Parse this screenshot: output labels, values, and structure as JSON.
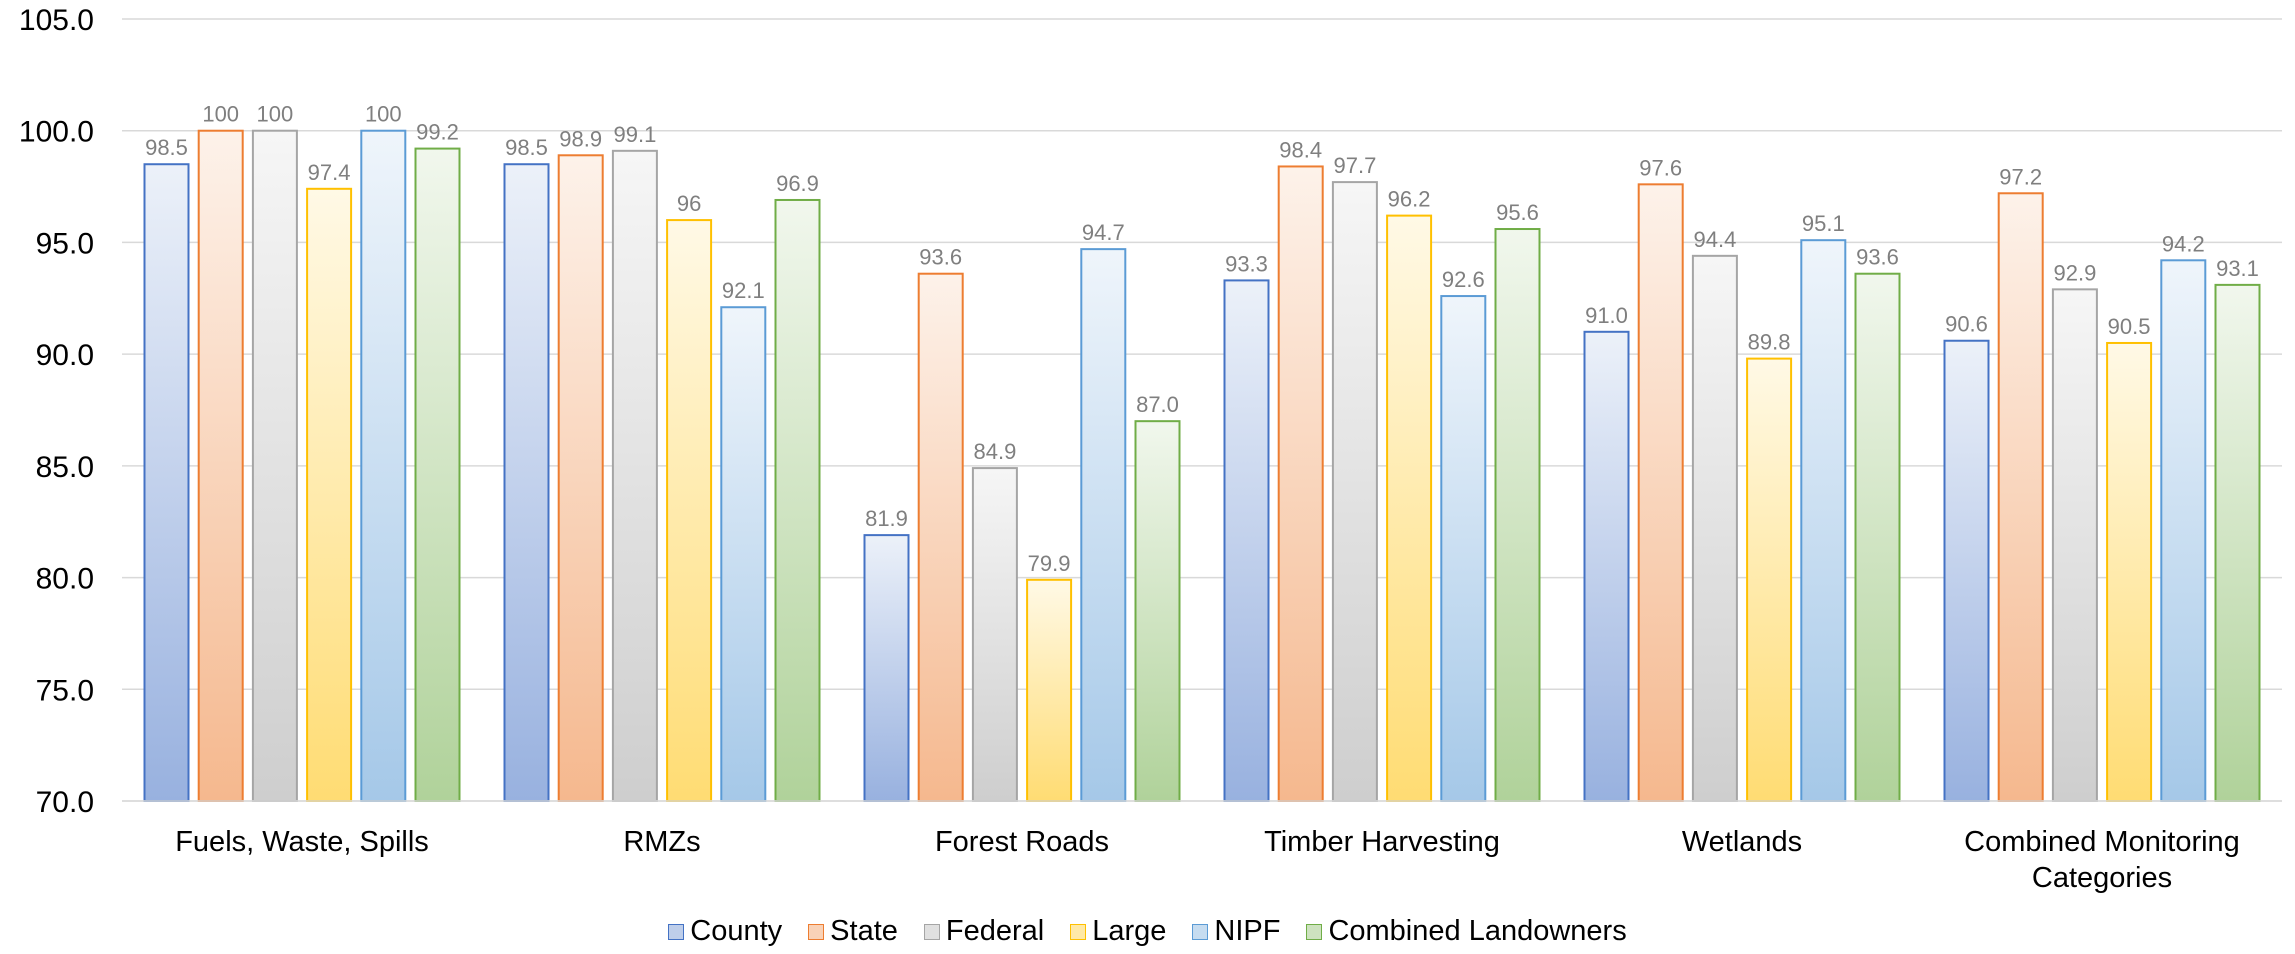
{
  "chart_data": {
    "type": "bar",
    "title": "",
    "xlabel": "",
    "ylabel": "",
    "ylim": [
      70.0,
      105.0
    ],
    "yticks": [
      "70.0",
      "75.0",
      "80.0",
      "85.0",
      "90.0",
      "95.0",
      "100.0",
      "105.0"
    ],
    "grid": "horizontal",
    "legend_position": "bottom",
    "categories": [
      [
        "Fuels, Waste, Spills"
      ],
      [
        "RMZs"
      ],
      [
        "Forest Roads"
      ],
      [
        "Timber Harvesting"
      ],
      [
        "Wetlands"
      ],
      [
        "Combined Monitoring",
        "Categories"
      ]
    ],
    "series": [
      {
        "name": "County",
        "color": "#4472c4",
        "values": [
          98.5,
          98.5,
          81.9,
          93.3,
          91.0,
          90.6
        ],
        "labels": [
          "98.5",
          "98.5",
          "81.9",
          "93.3",
          "91.0",
          "90.6"
        ]
      },
      {
        "name": "State",
        "color": "#ed7d31",
        "values": [
          100,
          98.9,
          93.6,
          98.4,
          97.6,
          97.2
        ],
        "labels": [
          "100",
          "98.9",
          "93.6",
          "98.4",
          "97.6",
          "97.2"
        ]
      },
      {
        "name": "Federal",
        "color": "#a5a5a5",
        "values": [
          100,
          99.1,
          84.9,
          97.7,
          94.4,
          92.9
        ],
        "labels": [
          "100",
          "99.1",
          "84.9",
          "97.7",
          "94.4",
          "92.9"
        ]
      },
      {
        "name": "Large",
        "color": "#ffc000",
        "values": [
          97.4,
          96,
          79.9,
          96.2,
          89.8,
          90.5
        ],
        "labels": [
          "97.4",
          "96",
          "79.9",
          "96.2",
          "89.8",
          "90.5"
        ]
      },
      {
        "name": "NIPF",
        "color": "#5b9bd5",
        "values": [
          100,
          92.1,
          94.7,
          92.6,
          95.1,
          94.2
        ],
        "labels": [
          "100",
          "92.1",
          "94.7",
          "92.6",
          "95.1",
          "94.2"
        ]
      },
      {
        "name": "Combined Landowners",
        "color": "#70ad47",
        "values": [
          99.2,
          96.9,
          87.0,
          95.6,
          93.6,
          93.1
        ],
        "labels": [
          "99.2",
          "96.9",
          "87.0",
          "95.6",
          "93.6",
          "93.1"
        ]
      }
    ]
  }
}
